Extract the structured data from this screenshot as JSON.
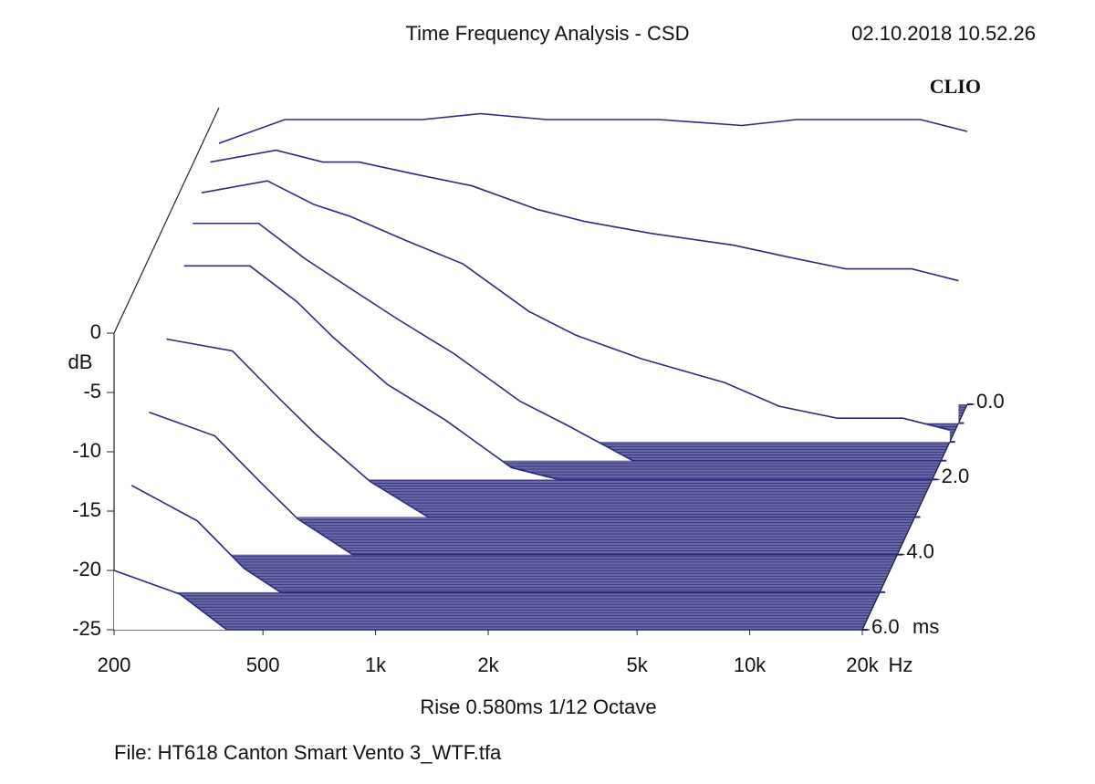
{
  "chart_data": {
    "type": "waterfall",
    "title": "Time Frequency Analysis - CSD",
    "timestamp": "02.10.2018 10.52.26",
    "brand": "CLIO",
    "ylabel": "dB",
    "xunit": "Hz",
    "zunit": "ms",
    "subtitle": "Rise 0.580ms   1/12 Octave",
    "file": "File: HT618 Canton Smart Vento 3_WTF.tfa",
    "log_x": true,
    "color": "#2b2b7c",
    "floor_color": "#6a6aa6",
    "xlim": [
      200,
      20000
    ],
    "xticks": [
      200,
      500,
      {
        "value": 1000,
        "label": "1k"
      },
      {
        "value": 2000,
        "label": "2k"
      },
      {
        "value": 5000,
        "label": "5k"
      },
      {
        "value": 10000,
        "label": "10k"
      },
      {
        "value": 20000,
        "label": "20k"
      }
    ],
    "ylim": [
      -25,
      0
    ],
    "yticks": [
      0,
      -5,
      -10,
      -15,
      -20,
      -25
    ],
    "zlim": [
      0,
      6
    ],
    "zticks": [
      {
        "value": 0,
        "label": "0.0"
      },
      {
        "value": 2,
        "label": "2.0"
      },
      {
        "value": 4,
        "label": "4.0"
      },
      {
        "value": 6,
        "label": "6.0"
      }
    ],
    "frequencies": [
      200,
      300,
      400,
      500,
      700,
      1000,
      1500,
      2000,
      3000,
      5000,
      7000,
      10000,
      15000,
      20000
    ],
    "series": [
      {
        "time": 0,
        "values": [
          -3,
          -1,
          -1,
          -1,
          -1,
          -0.5,
          -1,
          -1,
          -1,
          -1.5,
          -1,
          -1,
          -1,
          -2
        ]
      },
      {
        "time": 0.5,
        "values": [
          -3,
          -2,
          -3,
          -3,
          -4,
          -5,
          -7,
          -8,
          -9,
          -10,
          -11,
          -12,
          -12,
          -13
        ]
      },
      {
        "time": 1,
        "values": [
          -4,
          -3,
          -5,
          -6,
          -8,
          -10,
          -14,
          -16,
          -18,
          -20,
          -22,
          -23,
          -23,
          -24
        ]
      },
      {
        "time": 1.5,
        "values": [
          -5,
          -5,
          -8,
          -10,
          -13,
          -16,
          -20,
          -22,
          -25,
          -25,
          -25,
          -25,
          -25,
          -25
        ]
      },
      {
        "time": 2,
        "values": [
          -7,
          -7,
          -10,
          -13,
          -17,
          -20,
          -24,
          -25,
          -25,
          -25,
          -25,
          -25,
          -25,
          -25
        ]
      },
      {
        "time": 3,
        "values": [
          -10,
          -11,
          -15,
          -18,
          -22,
          -25,
          -25,
          -25,
          -25,
          -25,
          -25,
          -25,
          -25,
          -25
        ]
      },
      {
        "time": 4,
        "values": [
          -13,
          -15,
          -19,
          -22,
          -25,
          -25,
          -25,
          -25,
          -25,
          -25,
          -25,
          -25,
          -25,
          -25
        ]
      },
      {
        "time": 5,
        "values": [
          -16,
          -19,
          -23,
          -25,
          -25,
          -25,
          -25,
          -25,
          -25,
          -25,
          -25,
          -25,
          -25,
          -25
        ]
      },
      {
        "time": 6,
        "values": [
          -20,
          -22,
          -25,
          -25,
          -25,
          -25,
          -25,
          -25,
          -25,
          -25,
          -25,
          -25,
          -25,
          -25
        ]
      }
    ]
  }
}
